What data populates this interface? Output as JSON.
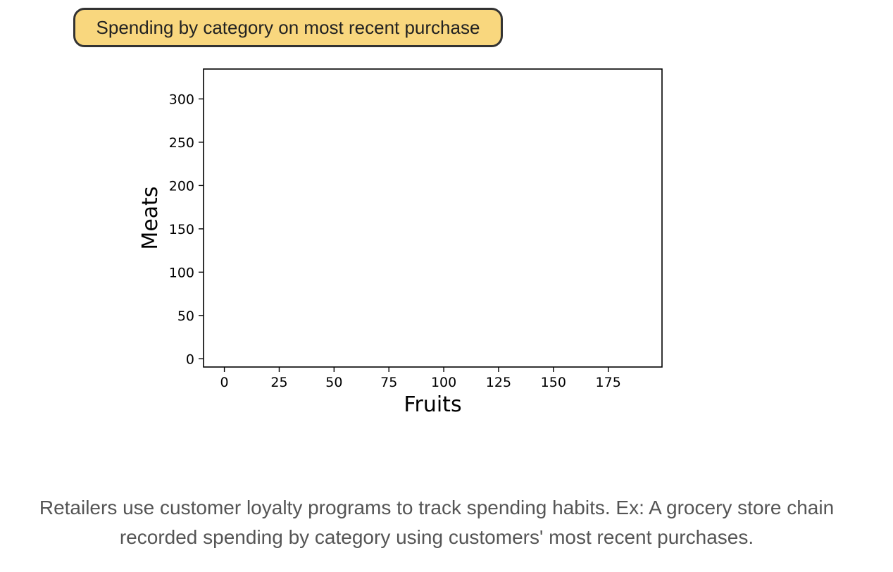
{
  "title": "Spending by category on most recent purchase",
  "caption": "Retailers use customer loyalty programs to track spending habits. Ex: A grocery store chain recorded spending by category using customers' most recent purchases.",
  "colors": {
    "title_background": "#f9d77e",
    "title_border": "#333333",
    "caption_text": "#555555"
  },
  "chart_data": {
    "type": "scatter",
    "title": "",
    "xlabel": "Fruits",
    "ylabel": "Meats",
    "xlim": [
      -9.5,
      199.5
    ],
    "ylim": [
      -9.5,
      334.5
    ],
    "xticks": [
      0,
      25,
      50,
      75,
      100,
      125,
      150,
      175
    ],
    "yticks": [
      0,
      50,
      100,
      150,
      200,
      250,
      300
    ],
    "grid": false,
    "series": [
      {
        "x": [],
        "y": []
      }
    ]
  }
}
